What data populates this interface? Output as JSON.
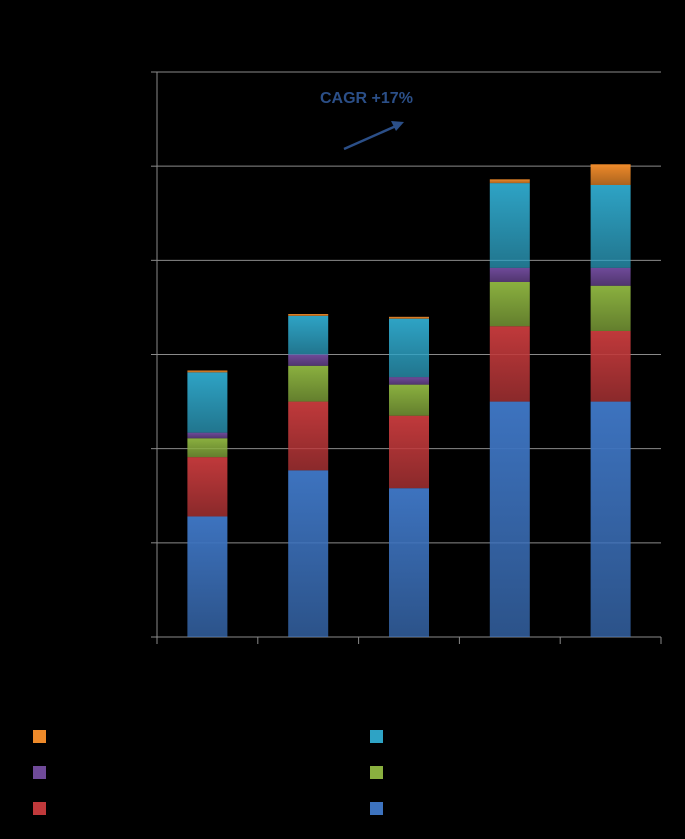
{
  "chart_data": {
    "type": "bar",
    "stacked": true,
    "categories": [
      "",
      "",
      "",
      "",
      ""
    ],
    "series": [
      {
        "color": "#3d73bf",
        "values": [
          1.28,
          1.77,
          1.58,
          2.5,
          2.5
        ]
      },
      {
        "color": "#c0393b",
        "values": [
          0.63,
          0.73,
          0.77,
          0.8,
          0.75
        ]
      },
      {
        "color": "#8ab03f",
        "values": [
          0.2,
          0.38,
          0.33,
          0.47,
          0.48
        ]
      },
      {
        "color": "#6f4a99",
        "values": [
          0.06,
          0.12,
          0.08,
          0.15,
          0.19
        ]
      },
      {
        "color": "#2ea3c5",
        "values": [
          0.64,
          0.41,
          0.62,
          0.9,
          0.88
        ]
      },
      {
        "color": "#ee8a2a",
        "values": [
          0.02,
          0.02,
          0.02,
          0.04,
          0.22
        ]
      }
    ],
    "ylim": [
      0,
      6
    ],
    "ytick_count": 7,
    "grid": true,
    "annotation": "CAGR +17%",
    "legend_position": "bottom"
  },
  "legend": [
    {
      "color": "#ee8a2a",
      "label": ""
    },
    {
      "color": "#2ea3c5",
      "label": ""
    },
    {
      "color": "#6f4a99",
      "label": ""
    },
    {
      "color": "#8ab03f",
      "label": ""
    },
    {
      "color": "#c0393b",
      "label": ""
    },
    {
      "color": "#3d73bf",
      "label": ""
    }
  ]
}
